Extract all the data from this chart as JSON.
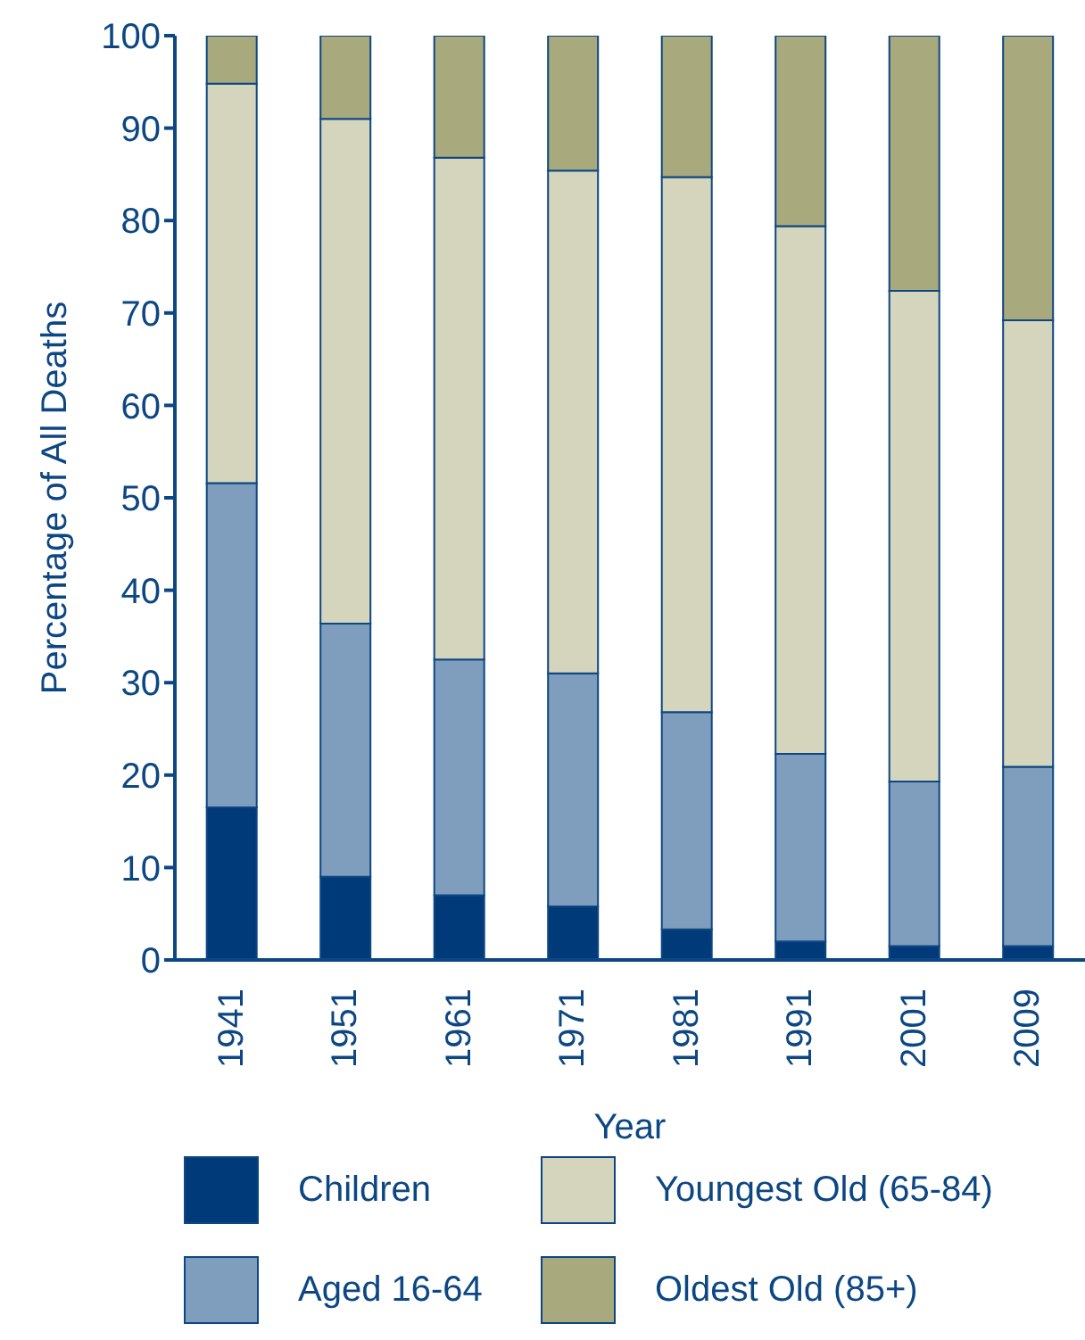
{
  "chart_data": {
    "type": "bar",
    "stacked": true,
    "xlabel": "Year",
    "ylabel": "Percentage of All Deaths",
    "categories": [
      "1941",
      "1951",
      "1961",
      "1971",
      "1981",
      "1991",
      "2001",
      "2009"
    ],
    "series": [
      {
        "name": "Children",
        "color": "#003a78",
        "values": [
          16.5,
          9,
          7,
          5.8,
          3.3,
          2,
          1.5,
          1.5
        ]
      },
      {
        "name": "Aged 16-64",
        "color": "#7f9dbd",
        "values": [
          35.1,
          27.4,
          25.5,
          25.2,
          23.5,
          20.3,
          17.8,
          19.4
        ]
      },
      {
        "name": "Youngest Old (65-84)",
        "color": "#d5d5bd",
        "values": [
          43.2,
          54.6,
          54.3,
          54.4,
          57.9,
          57.1,
          53.1,
          48.3
        ]
      },
      {
        "name": "Oldest Old (85+)",
        "color": "#a8a97c",
        "values": [
          5.2,
          9,
          13.2,
          14.6,
          15.3,
          20.6,
          27.6,
          30.8
        ]
      }
    ],
    "ylim": [
      0,
      100
    ],
    "yticks": [
      0,
      10,
      20,
      30,
      40,
      50,
      60,
      70,
      80,
      90,
      100
    ],
    "legend": "bottom"
  }
}
